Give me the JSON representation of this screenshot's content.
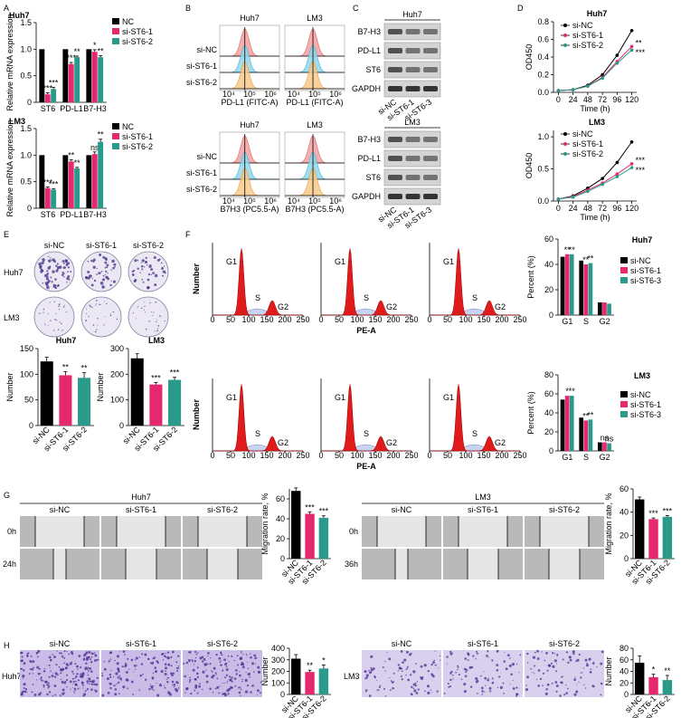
{
  "panel_labels": [
    "A",
    "B",
    "C",
    "D",
    "E",
    "F",
    "G",
    "H"
  ],
  "flow": {
    "rows": [
      "si-NC",
      "si-ST6-1",
      "si-ST6-2"
    ],
    "xticks": [
      "10⁴",
      "10⁵",
      "10⁶"
    ],
    "panels": [
      {
        "title": "Huh7",
        "xlabel": "PD-L1 (FITC-A)"
      },
      {
        "title": "LM3",
        "xlabel": "PD-L1 (FITC-A)"
      },
      {
        "title": "Huh7",
        "xlabel": "B7H3 (PC5.5-A)"
      },
      {
        "title": "LM3",
        "xlabel": "B7H3 (PC5.5-A)"
      }
    ]
  },
  "blots": {
    "lanes": [
      "si-NC",
      "si-ST6-1",
      "si-ST6-3"
    ],
    "panels": [
      {
        "title": "Huh7",
        "proteins": [
          "B7-H3",
          "PD-L1",
          "ST6",
          "GAPDH"
        ]
      },
      {
        "title": "LM3",
        "proteins": [
          "B7-H3",
          "PD-L1",
          "ST6",
          "GAPDH"
        ]
      }
    ]
  },
  "colony": {
    "columns": [
      "si-NC",
      "si-ST6-1",
      "si-ST6-2"
    ],
    "rows": [
      "Huh7",
      "LM3"
    ]
  },
  "cell_cycle": {
    "peaks": [
      "G1",
      "S",
      "G2"
    ],
    "ylabel": "Number",
    "xlabel": "PE-A",
    "xticks": [
      0,
      50,
      100,
      150,
      200,
      250
    ]
  },
  "wound": [
    {
      "title": "Huh7",
      "columns": [
        "si-NC",
        "si-ST6-1",
        "si-ST6-2"
      ],
      "rows": [
        "0h",
        "24h"
      ]
    },
    {
      "title": "LM3",
      "columns": [
        "si-NC",
        "si-ST6-1",
        "si-ST6-2"
      ],
      "rows": [
        "0h",
        "36h"
      ]
    }
  ],
  "transwell": [
    {
      "label": "Huh7",
      "columns": [
        "si-NC",
        "si-ST6-1",
        "si-ST6-2"
      ]
    },
    {
      "label": "LM3",
      "columns": [
        "si-NC",
        "si-ST6-1",
        "si-ST6-2"
      ]
    }
  ],
  "chart_data": [
    {
      "type": "bar",
      "title": "Huh7",
      "ylabel": "Relative mRNA expression",
      "categories": [
        "ST6",
        "PD-L1",
        "B7-H3"
      ],
      "ylim": [
        0,
        1.5
      ],
      "yticks": [
        0,
        0.5,
        {
          "value": 1,
          "label": "1.0"
        },
        1.5
      ],
      "series": [
        {
          "name": "NC",
          "color": "#000000",
          "values": [
            1,
            1,
            1
          ]
        },
        {
          "name": "si-ST6-1",
          "color": "#e6286e",
          "values": [
            0.15,
            0.72,
            0.95
          ],
          "errors": [
            0.03,
            0.03,
            0.04
          ],
          "annotations": [
            "***",
            "***",
            "*"
          ]
        },
        {
          "name": "si-ST6-2",
          "color": "#2a9a8a",
          "values": [
            0.25,
            0.85,
            0.85
          ],
          "errors": [
            0.03,
            0.02,
            0.03
          ],
          "annotations": [
            "***",
            "**",
            "**"
          ]
        }
      ]
    },
    {
      "type": "bar",
      "title": "LM3",
      "ylabel": "Relative mRNA expression",
      "categories": [
        "ST6",
        "PD-L1",
        "B7-H3"
      ],
      "ylim": [
        0,
        1.5
      ],
      "yticks": [
        0,
        0.5,
        {
          "value": 1,
          "label": "1.0"
        },
        1.5
      ],
      "series": [
        {
          "name": "NC",
          "color": "#000000",
          "values": [
            1,
            1,
            1
          ]
        },
        {
          "name": "si-ST6-1",
          "color": "#e6286e",
          "values": [
            0.38,
            0.88,
            1.02
          ],
          "errors": [
            0.02,
            0.03,
            0.04
          ],
          "annotations": [
            "***",
            "**",
            "ns"
          ]
        },
        {
          "name": "si-ST6-2",
          "color": "#2a9a8a",
          "values": [
            0.35,
            0.75,
            1.25
          ],
          "errors": [
            0.02,
            0.02,
            0.05
          ],
          "annotations": [
            "***",
            "**",
            "**"
          ]
        }
      ]
    },
    {
      "type": "line",
      "title": "Huh7",
      "xlabel": "Time (h)",
      "ylabel": "OD450",
      "x": [
        0,
        24,
        48,
        72,
        96,
        120
      ],
      "xlim": [
        -8,
        128
      ],
      "xticks": [
        0,
        24,
        48,
        72,
        96,
        120
      ],
      "ylim": [
        0,
        0.8
      ],
      "yticks": [
        {
          "value": 0,
          "label": "0.0"
        },
        0.2,
        0.4,
        0.6,
        0.8
      ],
      "series": [
        {
          "name": "si-NC",
          "color": "#000000",
          "values": [
            0.02,
            0.03,
            0.08,
            0.2,
            0.42,
            0.7
          ]
        },
        {
          "name": "si-ST6-1",
          "color": "#e6286e",
          "values": [
            0.02,
            0.03,
            0.07,
            0.17,
            0.35,
            0.52
          ],
          "annotation": "**"
        },
        {
          "name": "si-ST6-2",
          "color": "#2a9a8a",
          "values": [
            0.02,
            0.03,
            0.07,
            0.16,
            0.33,
            0.48
          ],
          "annotation": "***"
        }
      ]
    },
    {
      "type": "line",
      "title": "LM3",
      "xlabel": "Time (h)",
      "ylabel": "OD450",
      "x": [
        0,
        24,
        48,
        72,
        96,
        120
      ],
      "xlim": [
        -8,
        128
      ],
      "xticks": [
        0,
        24,
        48,
        72,
        96,
        120
      ],
      "ylim": [
        0,
        1.1
      ],
      "yticks": [
        {
          "value": 0,
          "label": "0.0"
        },
        0.5,
        {
          "value": 1,
          "label": "1.0"
        }
      ],
      "series": [
        {
          "name": "si-NC",
          "color": "#000000",
          "values": [
            0.03,
            0.08,
            0.2,
            0.35,
            0.6,
            0.92
          ]
        },
        {
          "name": "si-ST6-1",
          "color": "#e6286e",
          "values": [
            0.03,
            0.07,
            0.17,
            0.28,
            0.42,
            0.58
          ],
          "annotation": "***"
        },
        {
          "name": "si-ST6-2",
          "color": "#2a9a8a",
          "values": [
            0.03,
            0.06,
            0.15,
            0.26,
            0.38,
            0.52
          ],
          "annotation": "***"
        }
      ]
    },
    {
      "type": "bar",
      "title": "Huh7",
      "ylabel": "Number",
      "categories": [
        "si-NC",
        "si-ST6-1",
        "si-ST6-2"
      ],
      "values": [
        125,
        98,
        93
      ],
      "errors": [
        8,
        7,
        10
      ],
      "annotations": [
        null,
        "**",
        "**"
      ],
      "colors": [
        "#000000",
        "#e6286e",
        "#2a9a8a"
      ],
      "ylim": [
        0,
        150
      ],
      "yticks": [
        0,
        50,
        100,
        150
      ]
    },
    {
      "type": "bar",
      "title": "LM3",
      "ylabel": "Number",
      "categories": [
        "si-NC",
        "si-ST6-1",
        "si-ST6-2"
      ],
      "values": [
        262,
        160,
        178
      ],
      "errors": [
        18,
        8,
        10
      ],
      "annotations": [
        null,
        "***",
        "***"
      ],
      "colors": [
        "#000000",
        "#e6286e",
        "#2a9a8a"
      ],
      "ylim": [
        0,
        300
      ],
      "yticks": [
        0,
        100,
        200,
        300
      ]
    },
    {
      "type": "bar",
      "title": "Huh7",
      "ylabel": "Percent (%)",
      "categories": [
        "G1",
        "S",
        "G2"
      ],
      "ylim": [
        0,
        60
      ],
      "yticks": [
        0,
        20,
        40,
        60
      ],
      "series": [
        {
          "name": "si-NC",
          "color": "#000000",
          "values": [
            46,
            43,
            10
          ]
        },
        {
          "name": "si-ST6-1",
          "color": "#e6286e",
          "values": [
            48,
            40,
            10
          ],
          "annotations": [
            "**",
            "**",
            null
          ]
        },
        {
          "name": "si-ST6-3",
          "color": "#2a9a8a",
          "values": [
            48,
            41,
            9
          ],
          "annotations": [
            "**",
            "**",
            null
          ]
        }
      ]
    },
    {
      "type": "bar",
      "title": "LM3",
      "ylabel": "Percent (%)",
      "categories": [
        "G1",
        "S",
        "G2"
      ],
      "ylim": [
        0,
        80
      ],
      "yticks": [
        0,
        20,
        40,
        60,
        80
      ],
      "series": [
        {
          "name": "si-NC",
          "color": "#000000",
          "values": [
            54,
            35,
            9
          ]
        },
        {
          "name": "si-ST6-1",
          "color": "#e6286e",
          "values": [
            58,
            32,
            9
          ],
          "annotations": [
            "*",
            "**",
            "ns"
          ]
        },
        {
          "name": "si-ST6-3",
          "color": "#2a9a8a",
          "values": [
            58,
            33,
            8
          ],
          "annotations": [
            "**",
            "**",
            "ns"
          ]
        }
      ]
    },
    {
      "type": "bar",
      "ylabel": "Migration rate, %",
      "categories": [
        "si-NC",
        "si-ST6-1",
        "si-ST6-2"
      ],
      "values": [
        68,
        45,
        41
      ],
      "errors": [
        3,
        2,
        2
      ],
      "annotations": [
        null,
        "***",
        "***"
      ],
      "colors": [
        "#000000",
        "#e6286e",
        "#2a9a8a"
      ],
      "ylim": [
        0,
        70
      ],
      "yticks": [
        0,
        20,
        40,
        60
      ]
    },
    {
      "type": "bar",
      "ylabel": "Migration rate, %",
      "categories": [
        "si-NC",
        "si-ST6-1",
        "si-ST6-2"
      ],
      "values": [
        51,
        34,
        36
      ],
      "errors": [
        2,
        1,
        1
      ],
      "annotations": [
        null,
        "***",
        "***"
      ],
      "colors": [
        "#000000",
        "#e6286e",
        "#2a9a8a"
      ],
      "ylim": [
        0,
        60
      ],
      "yticks": [
        0,
        20,
        40,
        60
      ]
    },
    {
      "type": "bar",
      "ylabel": "Number",
      "categories": [
        "si-NC",
        "si-ST6-1",
        "si-ST6-2"
      ],
      "values": [
        310,
        195,
        225
      ],
      "errors": [
        35,
        15,
        30
      ],
      "annotations": [
        null,
        "**",
        "*"
      ],
      "colors": [
        "#000000",
        "#e6286e",
        "#2a9a8a"
      ],
      "ylim": [
        0,
        400
      ],
      "yticks": [
        0,
        100,
        200,
        300,
        400
      ]
    },
    {
      "type": "bar",
      "ylabel": "Number",
      "categories": [
        "si-NC",
        "si-ST6-1",
        "si-ST6-2"
      ],
      "values": [
        55,
        30,
        25
      ],
      "errors": [
        12,
        5,
        8
      ],
      "annotations": [
        null,
        "*",
        "**"
      ],
      "colors": [
        "#000000",
        "#e6286e",
        "#2a9a8a"
      ],
      "ylim": [
        0,
        80
      ],
      "yticks": [
        0,
        20,
        40,
        60,
        80
      ]
    }
  ]
}
